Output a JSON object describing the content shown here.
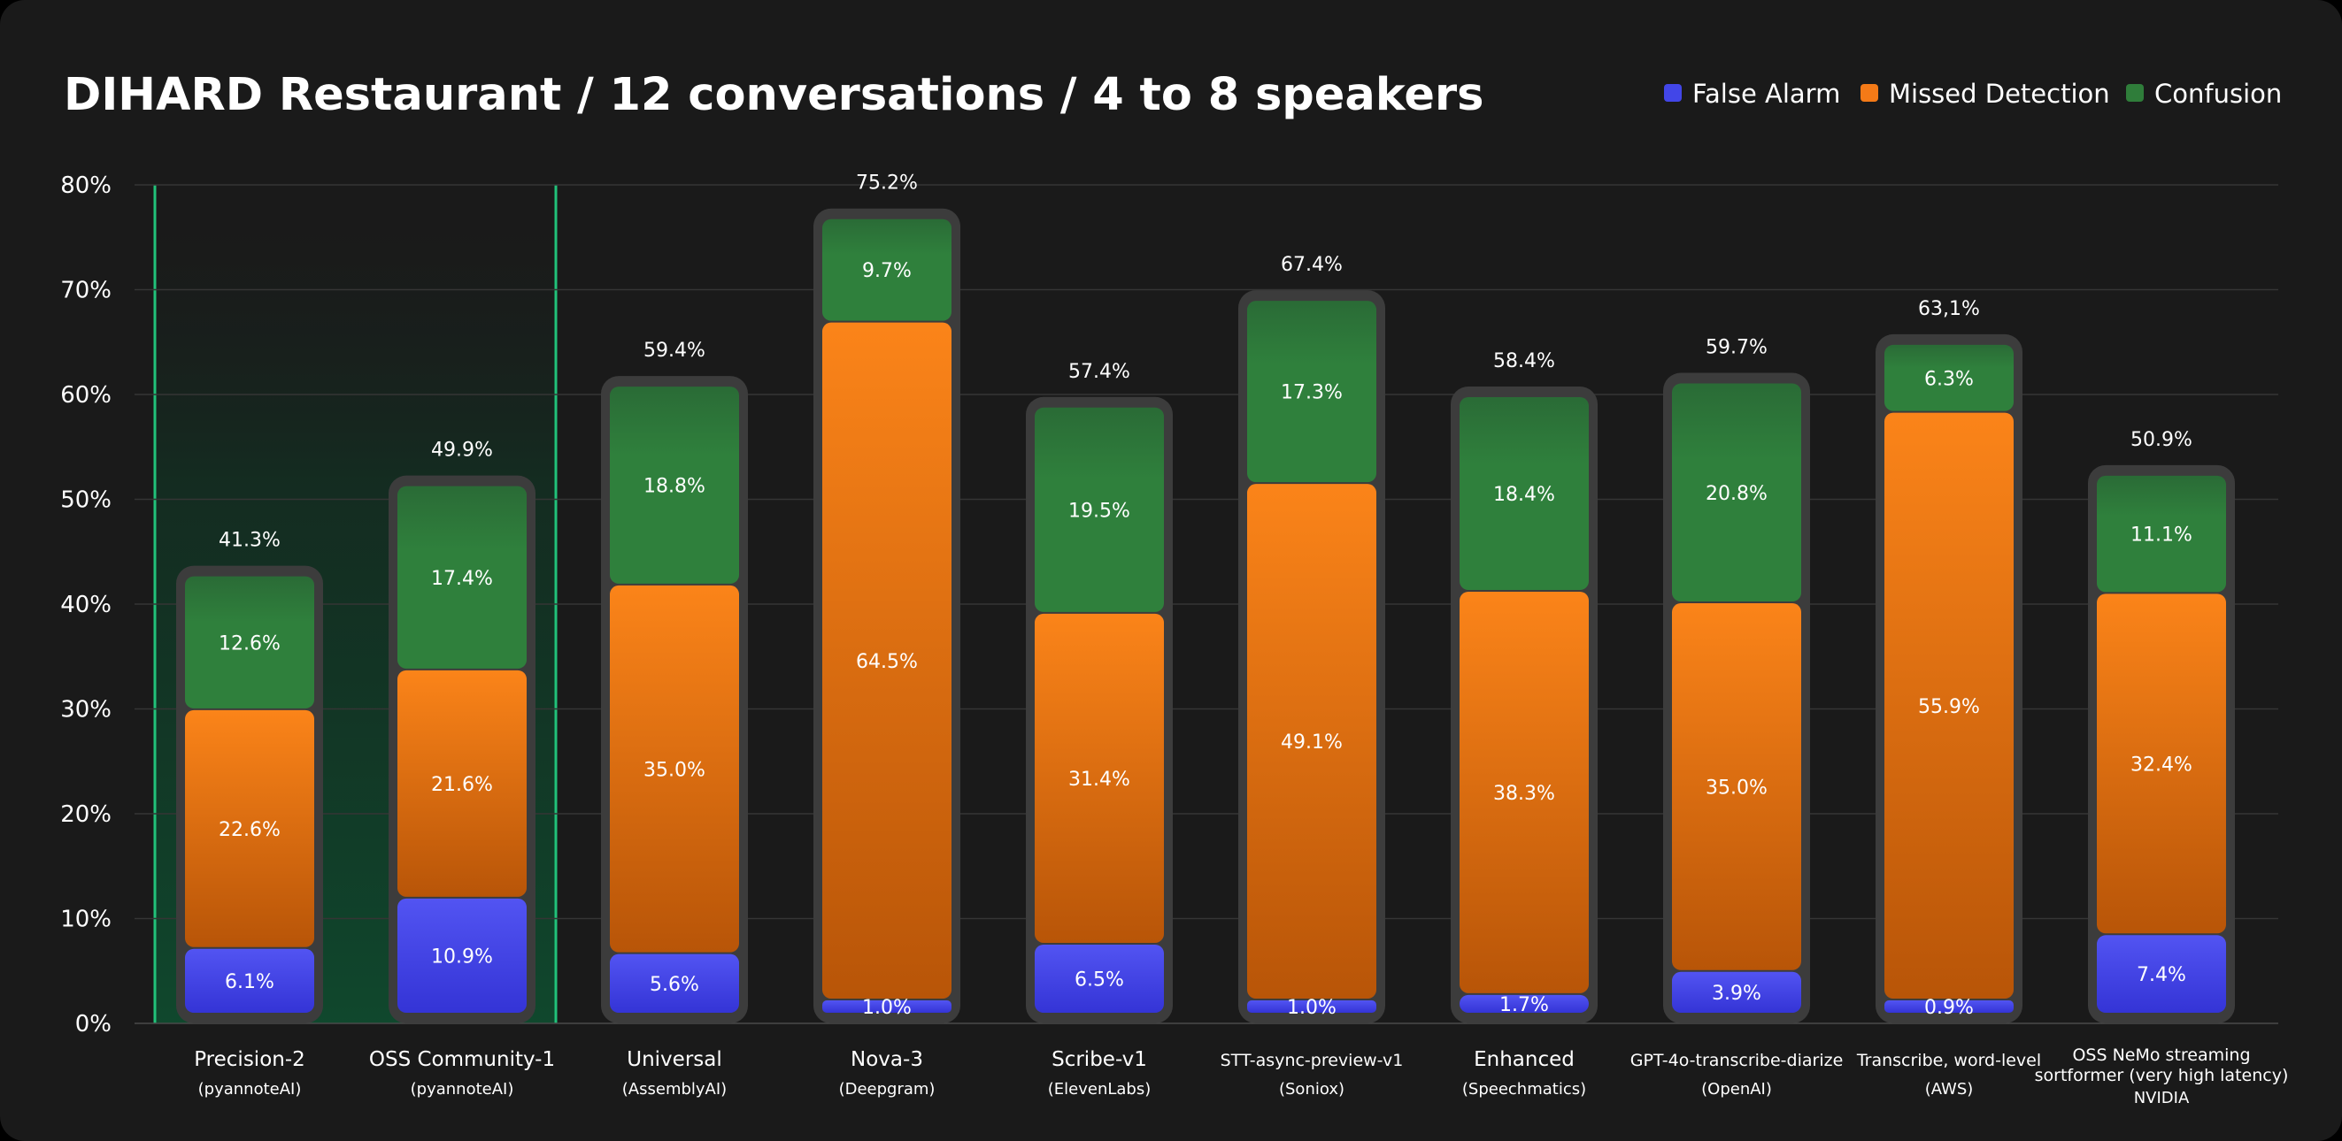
{
  "chart_data": {
    "type": "bar",
    "stacked": true,
    "title": "DIHARD Restaurant / 12 conversations / 4 to 8 speakers",
    "xlabel": "",
    "ylabel": "",
    "ylim": [
      0,
      80
    ],
    "yticks": [
      "0%",
      "10%",
      "20%",
      "30%",
      "40%",
      "50%",
      "60%",
      "70%",
      "80%"
    ],
    "legend_position": "top-right",
    "legend": [
      {
        "name": "False Alarm",
        "color": "#4246e8"
      },
      {
        "name": "Missed Detection",
        "color": "#f47a17"
      },
      {
        "name": "Confusion",
        "color": "#2f7d3a"
      }
    ],
    "highlighted_categories": [
      "Precision-2",
      "OSS Community-1"
    ],
    "highlight_color": "#21c27a",
    "categories": [
      {
        "name": "Precision-2",
        "sub": "(pyannoteAI)",
        "total": "41.3%"
      },
      {
        "name": "OSS Community-1",
        "sub": "(pyannoteAI)",
        "total": "49.9%"
      },
      {
        "name": "Universal",
        "sub": "(AssemblyAI)",
        "total": "59.4%"
      },
      {
        "name": "Nova-3",
        "sub": "(Deepgram)",
        "total": "75.2%"
      },
      {
        "name": "Scribe-v1",
        "sub": "(ElevenLabs)",
        "total": "57.4%"
      },
      {
        "name": "STT-async-preview-v1",
        "sub": "(Soniox)",
        "total": "67.4%"
      },
      {
        "name": "Enhanced",
        "sub": "(Speechmatics)",
        "total": "58.4%"
      },
      {
        "name": "GPT-4o-transcribe-diarize",
        "sub": "(OpenAI)",
        "total": "59.7%"
      },
      {
        "name": "Transcribe, word-level",
        "sub": "(AWS)",
        "total": "63,1%"
      },
      {
        "name": "OSS NeMo streaming sortformer (very high latency)",
        "sub": "NVIDIA",
        "total": "50.9%"
      }
    ],
    "series": [
      {
        "name": "False Alarm",
        "color": "#4246e8",
        "values": [
          6.1,
          10.9,
          5.6,
          1.0,
          6.5,
          1.0,
          1.7,
          3.9,
          0.9,
          7.4
        ],
        "labels": [
          "6.1%",
          "10.9%",
          "5.6%",
          "1.0%",
          "6.5%",
          "1.0%",
          "1.7%",
          "3.9%",
          "0.9%",
          "7.4%"
        ]
      },
      {
        "name": "Missed Detection",
        "color": "#f47a17",
        "values": [
          22.6,
          21.6,
          35.0,
          64.5,
          31.4,
          49.1,
          38.3,
          35.0,
          55.9,
          32.4
        ],
        "labels": [
          "22.6%",
          "21.6%",
          "35.0%",
          "64.5%",
          "31.4%",
          "49.1%",
          "38.3%",
          "35.0%",
          "55.9%",
          "32.4%"
        ]
      },
      {
        "name": "Confusion",
        "color": "#2f7d3a",
        "values": [
          12.6,
          17.4,
          18.8,
          9.7,
          19.5,
          17.3,
          18.4,
          20.8,
          6.3,
          11.1
        ],
        "labels": [
          "12.6%",
          "17.4%",
          "18.8%",
          "9.7%",
          "19.5%",
          "17.3%",
          "18.4%",
          "20.8%",
          "6.3%",
          "11.1%"
        ]
      }
    ]
  }
}
